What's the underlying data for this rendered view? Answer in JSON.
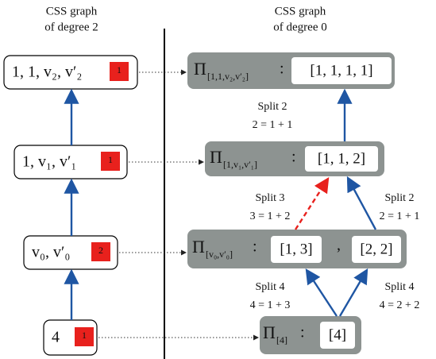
{
  "headers": {
    "left": [
      "CSS graph",
      "of degree 2"
    ],
    "right": [
      "CSS graph",
      "of degree 0"
    ]
  },
  "left_nodes": [
    {
      "label": "1, 1, v₂, v′₂",
      "badge": "1"
    },
    {
      "label": "1, v₁, v′₁",
      "badge": "1"
    },
    {
      "label": "v₀, v′₀",
      "badge": "2"
    },
    {
      "label": "4",
      "badge": "1"
    }
  ],
  "right_nodes": [
    {
      "symbol": "Π",
      "subscript": "[1,1,v₂,v′₂]",
      "separator": ":",
      "parts": [
        "[1, 1, 1, 1]"
      ]
    },
    {
      "symbol": "Π",
      "subscript": "[1,v₁,v′₁]",
      "separator": ":",
      "parts": [
        "[1, 1, 2]"
      ]
    },
    {
      "symbol": "Π",
      "subscript": "[v₀,v′₀]",
      "separator": ":",
      "parts": [
        "[1, 3]",
        "[2, 2]"
      ],
      "joiner": ","
    },
    {
      "symbol": "Π",
      "subscript": "[4]",
      "separator": ":",
      "parts": [
        "[4]"
      ]
    }
  ],
  "edge_labels": [
    {
      "title": "Split 2",
      "equation": "2 = 1 + 1"
    },
    {
      "title": "Split 3",
      "equation": "3 = 1 + 2"
    },
    {
      "title": "Split 2",
      "equation": "2 = 1 + 1"
    },
    {
      "title": "Split 4",
      "equation": "4 = 1 + 3"
    },
    {
      "title": "Split 4",
      "equation": "4 = 2 + 2"
    }
  ]
}
